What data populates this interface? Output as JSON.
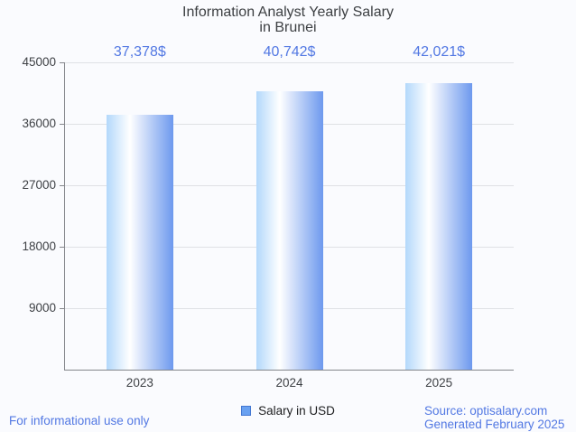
{
  "header": {
    "title_line1": "Information Analyst Yearly Salary",
    "title_line2": "in Brunei"
  },
  "chart_data": {
    "type": "bar",
    "title": "Information Analyst Yearly Salary in Brunei",
    "categories": [
      "2023",
      "2024",
      "2025"
    ],
    "series": [
      {
        "name": "Salary in USD",
        "values": [
          37378,
          40742,
          42021
        ]
      }
    ],
    "value_labels": [
      "37,378$",
      "40,742$",
      "42,021$"
    ],
    "xlabel": "",
    "ylabel": "",
    "ylim": [
      0,
      45000
    ],
    "yticks": [
      9000,
      18000,
      27000,
      36000,
      45000
    ],
    "grid": true,
    "legend_position": "bottom",
    "bar_gradient_left": "#b3d8fb",
    "bar_gradient_right": "#6d99ee"
  },
  "legend": {
    "label": "Salary in USD",
    "swatch_fill": "#69a1f1",
    "swatch_border": "#4377d2"
  },
  "footer": {
    "disclaimer": "For informational use only",
    "source": "Source: optisalary.com",
    "generated": "Generated February 2025"
  },
  "colors": {
    "accent_blue": "#5278e3",
    "axis_text": "#3e4145",
    "axis_line": "#84868b",
    "gridline": "#dfe1e5",
    "background": "#fafbfe"
  }
}
